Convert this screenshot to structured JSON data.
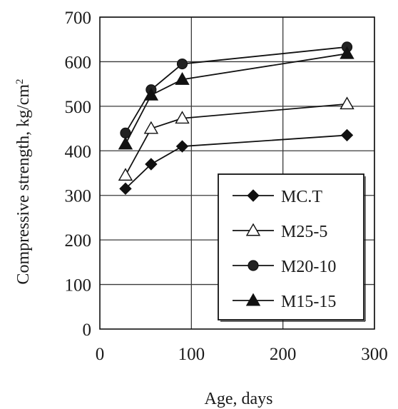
{
  "chart_data": {
    "type": "line",
    "xlabel": "Age, days",
    "ylabel": "Compressive strength, kg/cm",
    "ylabel_superscript": "2",
    "xlim": [
      0,
      300
    ],
    "ylim": [
      0,
      700
    ],
    "xticks": [
      "0",
      "100",
      "200",
      "300"
    ],
    "yticks": [
      "0",
      "100",
      "200",
      "300",
      "400",
      "500",
      "600",
      "700"
    ],
    "grid": true,
    "legend_position": "bottom-right",
    "series": [
      {
        "name": "MC.T",
        "marker": "diamond-filled",
        "x": [
          28,
          56,
          90,
          270
        ],
        "values": [
          315,
          370,
          410,
          435
        ]
      },
      {
        "name": "M25-5",
        "marker": "triangle-open",
        "x": [
          28,
          56,
          90,
          270
        ],
        "values": [
          345,
          450,
          473,
          505
        ]
      },
      {
        "name": "M20-10",
        "marker": "circle-filled",
        "x": [
          28,
          56,
          90,
          270
        ],
        "values": [
          440,
          537,
          595,
          633
        ]
      },
      {
        "name": "M15-15",
        "marker": "triangle-filled",
        "x": [
          28,
          56,
          90,
          270
        ],
        "values": [
          415,
          525,
          560,
          618
        ]
      }
    ]
  }
}
